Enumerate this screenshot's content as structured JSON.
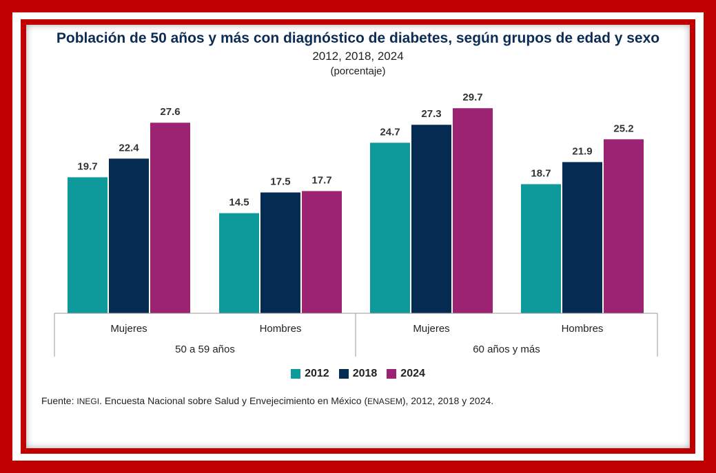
{
  "chart_data": {
    "type": "bar",
    "title": "Población de 50 años y más con diagnóstico de diabetes, según grupos de edad y sexo",
    "subtitle": "2012, 2018, 2024",
    "unit": "(porcentaje)",
    "groups": [
      {
        "label": "50 a 59 años",
        "categories": [
          "Mujeres",
          "Hombres"
        ]
      },
      {
        "label": "60 años y más",
        "categories": [
          "Mujeres",
          "Hombres"
        ]
      }
    ],
    "categories": [
      "Mujeres",
      "Hombres",
      "Mujeres",
      "Hombres"
    ],
    "series": [
      {
        "name": "2012",
        "color": "#0e9a9b",
        "values": [
          19.7,
          14.5,
          24.7,
          18.7
        ]
      },
      {
        "name": "2018",
        "color": "#062b52",
        "values": [
          22.4,
          17.5,
          27.3,
          21.9
        ]
      },
      {
        "name": "2024",
        "color": "#9c2372",
        "values": [
          27.6,
          17.7,
          29.7,
          25.2
        ]
      }
    ],
    "ylim": [
      0,
      30
    ],
    "legend": "bottom-center"
  },
  "source": {
    "prefix": "Fuente: ",
    "org": "INEGI",
    "middle": ". Encuesta Nacional sobre Salud y Envejecimiento en México (",
    "survey": "ENASEM",
    "suffix": "), 2012, 2018 y 2024."
  }
}
